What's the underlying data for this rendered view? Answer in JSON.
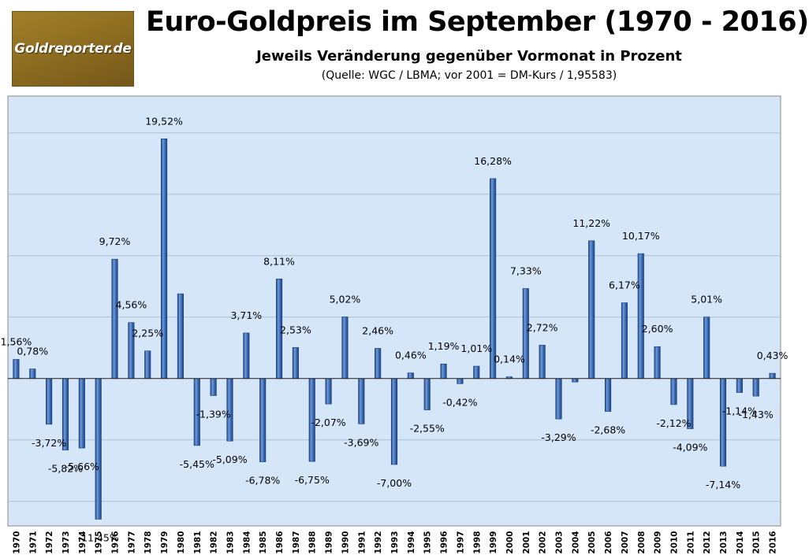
{
  "logo": {
    "text": "Goldreporter.de"
  },
  "colors": {
    "plot_bg": "#d6e6f9",
    "bar": "#3b6cb6",
    "bar_dark": "#1f4583",
    "bar_light": "#6f9bdb",
    "gridline": "#aebfd6",
    "axis": "#1c1c1c"
  },
  "chart_data": {
    "type": "bar",
    "title": "Euro-Goldpreis im September (1970 - 2016)",
    "subtitle": "Jeweils Veränderung gegenüber Vormonat in Prozent",
    "source": "(Quelle: WGC / LBMA; vor 2001 = DM-Kurs / 1,95583)",
    "xlabel": "",
    "ylabel": "",
    "ylim": [
      -12,
      23
    ],
    "grid": true,
    "categories": [
      "1970",
      "1971",
      "1972",
      "1973",
      "1974",
      "1975",
      "1976",
      "1977",
      "1978",
      "1979",
      "1980",
      "1981",
      "1982",
      "1983",
      "1984",
      "1985",
      "1986",
      "1987",
      "1988",
      "1989",
      "1990",
      "1991",
      "1992",
      "1993",
      "1994",
      "1995",
      "1996",
      "1997",
      "1998",
      "1999",
      "2000",
      "2001",
      "2002",
      "2003",
      "2004",
      "2005",
      "2006",
      "2007",
      "2008",
      "2009",
      "2010",
      "2011",
      "2012",
      "2013",
      "2014",
      "2015",
      "2016"
    ],
    "values": [
      1.56,
      0.78,
      -3.72,
      -5.82,
      -5.66,
      -11.45,
      9.72,
      4.56,
      2.25,
      19.52,
      6.9,
      -5.45,
      -1.39,
      -5.09,
      3.71,
      -6.78,
      8.11,
      2.53,
      -6.75,
      -2.07,
      5.02,
      -3.69,
      2.46,
      -7.0,
      0.46,
      -2.55,
      1.19,
      -0.42,
      1.01,
      16.28,
      0.14,
      7.33,
      2.72,
      -3.29,
      -0.28,
      11.22,
      -2.68,
      6.17,
      10.17,
      2.6,
      -2.12,
      -4.09,
      5.01,
      -7.14,
      -1.14,
      -1.43,
      0.43
    ],
    "data_labels": [
      "1,56%",
      "0,78%",
      "-3,72%",
      "-5,82%",
      "-5,66%",
      "-11,45%",
      "9,72%",
      "4,56%",
      "2,25%",
      "19,52%",
      "",
      "-5,45%",
      "-1,39%",
      "-5,09%",
      "3,71%",
      "-6,78%",
      "8,11%",
      "2,53%",
      "-6,75%",
      "-2,07%",
      "5,02%",
      "-3,69%",
      "2,46%",
      "-7,00%",
      "0,46%",
      "-2,55%",
      "1,19%",
      "-0,42%",
      "1,01%",
      "16,28%",
      "0,14%",
      "7,33%",
      "2,72%",
      "-3,29%",
      "",
      "11,22%",
      "-2,68%",
      "6,17%",
      "10,17%",
      "2,60%",
      "-2,12%",
      "-4,09%",
      "5,01%",
      "-7,14%",
      "-1,14%",
      "-1,43%",
      "0,43%"
    ]
  }
}
